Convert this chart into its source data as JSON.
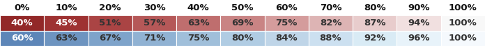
{
  "header": [
    "0%",
    "10%",
    "20%",
    "30%",
    "40%",
    "50%",
    "60%",
    "70%",
    "80%",
    "90%",
    "100%"
  ],
  "row1_labels": [
    "40%",
    "45%",
    "51%",
    "57%",
    "63%",
    "69%",
    "75%",
    "82%",
    "87%",
    "94%",
    "100%"
  ],
  "row2_labels": [
    "60%",
    "63%",
    "67%",
    "71%",
    "75%",
    "80%",
    "84%",
    "88%",
    "92%",
    "96%",
    "100%"
  ],
  "row1_colors": [
    "#922828",
    "#9e3232",
    "#aa4444",
    "#b55858",
    "#bf6e6e",
    "#c98484",
    "#d49c9c",
    "#ddb4b4",
    "#e8cccc",
    "#f1e0e0",
    "#f8f8f8"
  ],
  "row2_colors": [
    "#5d86b8",
    "#6d94c0",
    "#7ea3ca",
    "#90b2d3",
    "#a0bfda",
    "#b0cce3",
    "#bfd5e8",
    "#cce0f0",
    "#d9ebf5",
    "#e8f3fa",
    "#f5f9fd"
  ],
  "header_fontsize": 9.5,
  "cell_fontsize": 9.5,
  "header_bg": "#ffffff",
  "header_text_color": "#111111",
  "row1_text_colors": [
    "#ffffff",
    "#ffffff",
    "#333333",
    "#333333",
    "#333333",
    "#333333",
    "#333333",
    "#333333",
    "#333333",
    "#333333",
    "#333333"
  ],
  "row2_text_colors": [
    "#ffffff",
    "#333333",
    "#333333",
    "#333333",
    "#333333",
    "#333333",
    "#333333",
    "#333333",
    "#333333",
    "#333333",
    "#333333"
  ],
  "n_cols": 11,
  "fig_width": 6.96,
  "fig_height": 0.67,
  "dpi": 100
}
